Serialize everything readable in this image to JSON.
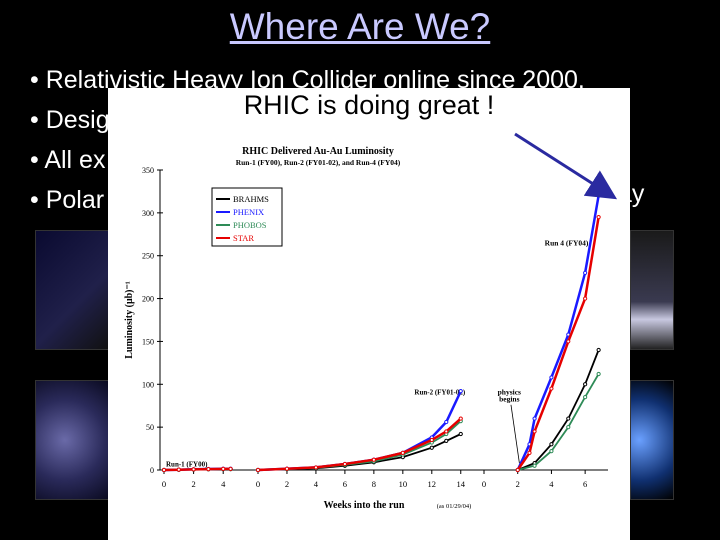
{
  "slide": {
    "title": "Where Are We?",
    "bullets": [
      "• Relativistic Heavy Ion Collider online since 2000.",
      "• Desig",
      "• All ex",
      "• Polar"
    ],
    "bullet_tail": "ay"
  },
  "overlay": {
    "headline": "RHIC is doing great !"
  },
  "chart_data": {
    "type": "line",
    "title": "RHIC Delivered Au-Au Luminosity",
    "subtitle": "Run-1 (FY00), Run-2 (FY01-02), and Run-4 (FY04)",
    "xlabel": "Weeks into the run",
    "xlabel_note": "(as 01/29/04)",
    "ylabel": "Luminosity (μb)⁻¹",
    "ylim": [
      0,
      350
    ],
    "yticks": [
      0,
      50,
      100,
      150,
      200,
      250,
      300,
      350
    ],
    "panels": [
      {
        "label": "Run-1 (FY00)",
        "xlim": [
          0,
          5
        ],
        "xticks": [
          "0",
          "2",
          "4"
        ]
      },
      {
        "label": "Run-2 (FY01-02)",
        "xlim": [
          0,
          14.5
        ],
        "xticks": [
          "0",
          "2",
          "4",
          "6",
          "8",
          "10",
          "12",
          "14"
        ]
      },
      {
        "label": "Run 4 (FY04)",
        "xlim": [
          0,
          7
        ],
        "xticks": [
          "0",
          "2",
          "4",
          "6"
        ]
      }
    ],
    "annotations": [
      "physics begins"
    ],
    "series": [
      {
        "name": "BRAHMS",
        "color": "#000000",
        "run1": [
          [
            0,
            0
          ],
          [
            1,
            0.3
          ],
          [
            2,
            0.6
          ],
          [
            3,
            0.8
          ],
          [
            4,
            1
          ],
          [
            4.5,
            1
          ]
        ],
        "run2": [
          [
            0,
            0
          ],
          [
            2,
            1
          ],
          [
            4,
            2
          ],
          [
            6,
            5
          ],
          [
            8,
            9
          ],
          [
            10,
            15
          ],
          [
            12,
            26
          ],
          [
            13,
            34
          ],
          [
            14,
            42
          ]
        ],
        "run4": [
          [
            2,
            0
          ],
          [
            3,
            8
          ],
          [
            4,
            30
          ],
          [
            5,
            60
          ],
          [
            6,
            100
          ],
          [
            6.8,
            140
          ]
        ]
      },
      {
        "name": "PHENIX",
        "color": "#1a1aff",
        "run1": [
          [
            0,
            0
          ],
          [
            1,
            0.4
          ],
          [
            2,
            0.8
          ],
          [
            3,
            1.2
          ],
          [
            4,
            1.5
          ],
          [
            4.5,
            1.5
          ]
        ],
        "run2": [
          [
            0,
            0
          ],
          [
            2,
            1.5
          ],
          [
            4,
            3
          ],
          [
            6,
            7
          ],
          [
            8,
            12
          ],
          [
            10,
            20
          ],
          [
            12,
            38
          ],
          [
            13,
            56
          ],
          [
            14,
            92
          ]
        ],
        "run4": [
          [
            2,
            0
          ],
          [
            2.7,
            30
          ],
          [
            3,
            60
          ],
          [
            4,
            108
          ],
          [
            5,
            158
          ],
          [
            6,
            230
          ],
          [
            6.8,
            320
          ]
        ]
      },
      {
        "name": "PHOBOS",
        "color": "#2e8b57",
        "run1": [
          [
            0,
            0
          ],
          [
            1,
            0.3
          ],
          [
            2,
            0.6
          ],
          [
            3,
            0.9
          ],
          [
            4,
            1.1
          ],
          [
            4.5,
            1.1
          ]
        ],
        "run2": [
          [
            0,
            0
          ],
          [
            2,
            1
          ],
          [
            4,
            2.5
          ],
          [
            6,
            6
          ],
          [
            8,
            10
          ],
          [
            10,
            18
          ],
          [
            12,
            32
          ],
          [
            13,
            42
          ],
          [
            14,
            57
          ]
        ],
        "run4": [
          [
            2,
            0
          ],
          [
            3,
            5
          ],
          [
            4,
            22
          ],
          [
            5,
            50
          ],
          [
            6,
            85
          ],
          [
            6.8,
            112
          ]
        ]
      },
      {
        "name": "STAR",
        "color": "#e60000",
        "run1": [
          [
            0,
            0
          ],
          [
            1,
            0.4
          ],
          [
            2,
            0.7
          ],
          [
            3,
            1
          ],
          [
            4,
            1.3
          ],
          [
            4.5,
            1.3
          ]
        ],
        "run2": [
          [
            0,
            0
          ],
          [
            2,
            1.5
          ],
          [
            4,
            3
          ],
          [
            6,
            7
          ],
          [
            8,
            12
          ],
          [
            10,
            20
          ],
          [
            12,
            35
          ],
          [
            13,
            45
          ],
          [
            14,
            60
          ]
        ],
        "run4": [
          [
            2,
            0
          ],
          [
            2.7,
            20
          ],
          [
            3,
            45
          ],
          [
            4,
            95
          ],
          [
            5,
            150
          ],
          [
            6,
            200
          ],
          [
            6.8,
            295
          ]
        ]
      }
    ]
  }
}
